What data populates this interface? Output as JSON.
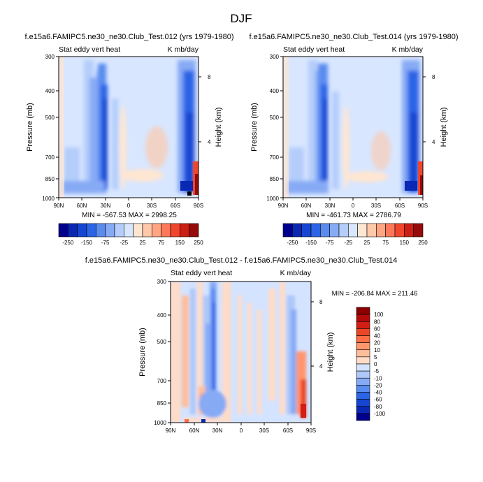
{
  "figure": {
    "title": "DJF"
  },
  "chart_data": [
    {
      "type": "heatmap",
      "title": "f.e15a6.FAMIPC5.ne30_ne30.Club_Test.012 (yrs 1979-1980)",
      "left_string": "Stat eddy vert heat",
      "right_string": "K mb/day",
      "xlabel": "",
      "ylabel": "Pressure (mb)",
      "ylabel_right": "Height (km)",
      "x_ticks": [
        "90N",
        "60N",
        "30N",
        "0",
        "30S",
        "60S",
        "90S"
      ],
      "y_ticks": [
        "300",
        "400",
        "500",
        "700",
        "850",
        "1000"
      ],
      "y_ticks_right": [
        "8",
        "4"
      ],
      "ylim": [
        1000,
        300
      ],
      "stats": "MIN = -567.53  MAX = 2998.25",
      "min": -567.53,
      "max": 2998.25
    },
    {
      "type": "heatmap",
      "title": "f.e15a6.FAMIPC5.ne30_ne30.Club_Test.014 (yrs 1979-1980)",
      "left_string": "Stat eddy vert heat",
      "right_string": "K mb/day",
      "xlabel": "",
      "ylabel": "Pressure (mb)",
      "ylabel_right": "Height (km)",
      "x_ticks": [
        "90N",
        "60N",
        "30N",
        "0",
        "30S",
        "60S",
        "90S"
      ],
      "y_ticks": [
        "300",
        "400",
        "500",
        "700",
        "850",
        "1000"
      ],
      "y_ticks_right": [
        "8",
        "4"
      ],
      "ylim": [
        1000,
        300
      ],
      "stats": "MIN = -461.73  MAX = 2786.79",
      "min": -461.73,
      "max": 2786.79
    },
    {
      "type": "heatmap",
      "title": "f.e15a6.FAMIPC5.ne30_ne30.Club_Test.012 - f.e15a6.FAMIPC5.ne30_ne30.Club_Test.014",
      "left_string": "Stat eddy vert heat",
      "right_string": "K mb/day",
      "xlabel": "",
      "ylabel": "Pressure (mb)",
      "ylabel_right": "Height (km)",
      "x_ticks": [
        "90N",
        "60N",
        "30N",
        "0",
        "30S",
        "60S",
        "90S"
      ],
      "y_ticks": [
        "300",
        "400",
        "500",
        "700",
        "850",
        "1000"
      ],
      "y_ticks_right": [
        "8",
        "4"
      ],
      "ylim": [
        1000,
        300
      ],
      "stats": "MIN = -206.84  MAX = 211.46",
      "min": -206.84,
      "max": 211.46
    }
  ],
  "colorbars": {
    "top": {
      "labels": [
        "-250",
        "-150",
        "-75",
        "-25",
        "25",
        "75",
        "150",
        "250"
      ],
      "colors": [
        "#00008c",
        "#0a28b4",
        "#1446d2",
        "#2c64e6",
        "#5a8cf0",
        "#87aaf5",
        "#b4cdfa",
        "#d8e6ff",
        "#ffe6d2",
        "#ffc8a8",
        "#ffa582",
        "#ff785a",
        "#f0462d",
        "#cd1e14",
        "#960a0a"
      ]
    },
    "diff": {
      "labels": [
        "100",
        "80",
        "60",
        "40",
        "20",
        "10",
        "5",
        "0",
        "-5",
        "-10",
        "-20",
        "-40",
        "-60",
        "-80",
        "-100"
      ],
      "colors": [
        "#8c0000",
        "#b40a0a",
        "#d21e14",
        "#eb4628",
        "#ff6e46",
        "#ff966e",
        "#ffbe9b",
        "#ffdcc8",
        "#d4e3ff",
        "#aec8fa",
        "#87aaf5",
        "#5a8cf0",
        "#2c64e6",
        "#1446d2",
        "#0a28b4",
        "#00008c"
      ]
    }
  }
}
